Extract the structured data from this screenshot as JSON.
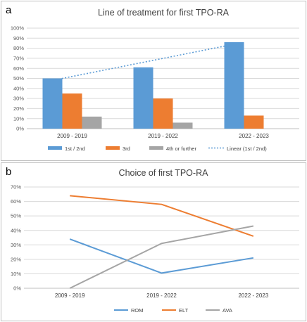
{
  "chart_data": [
    {
      "panel_label": "a",
      "type": "bar",
      "title": "Line of treatment for first TPO-RA",
      "categories": [
        "2009 - 2019",
        "2019 - 2022",
        "2022 - 2023"
      ],
      "series": [
        {
          "name": "1st / 2nd",
          "values": [
            50,
            61,
            86
          ],
          "color": "#5B9BD5"
        },
        {
          "name": "3rd",
          "values": [
            35,
            30,
            13
          ],
          "color": "#ED7D31"
        },
        {
          "name": "4th or further",
          "values": [
            12,
            6,
            0
          ],
          "color": "#A5A5A5"
        }
      ],
      "trendline": {
        "name": "Linear (1st / 2nd)",
        "values": [
          48,
          66,
          84
        ],
        "color": "#5B9BD5",
        "style": "dotted"
      },
      "yticks": [
        "0%",
        "10%",
        "20%",
        "30%",
        "40%",
        "50%",
        "60%",
        "70%",
        "80%",
        "90%",
        "100%"
      ],
      "ylim": [
        0,
        100
      ],
      "grid": true,
      "legend": "bottom"
    },
    {
      "panel_label": "b",
      "type": "line",
      "title": "Choice of first TPO-RA",
      "categories": [
        "2009 - 2019",
        "2019 - 2022",
        "2022 - 2023"
      ],
      "series": [
        {
          "name": "ROM",
          "values": [
            34,
            10.5,
            21
          ],
          "color": "#5B9BD5"
        },
        {
          "name": "ELT",
          "values": [
            64,
            58,
            36
          ],
          "color": "#ED7D31"
        },
        {
          "name": "AVA",
          "values": [
            0,
            31,
            43
          ],
          "color": "#A5A5A5"
        }
      ],
      "yticks": [
        "0%",
        "10%",
        "20%",
        "30%",
        "40%",
        "50%",
        "60%",
        "70%"
      ],
      "ylim": [
        0,
        70
      ],
      "grid": true,
      "legend": "bottom"
    }
  ]
}
